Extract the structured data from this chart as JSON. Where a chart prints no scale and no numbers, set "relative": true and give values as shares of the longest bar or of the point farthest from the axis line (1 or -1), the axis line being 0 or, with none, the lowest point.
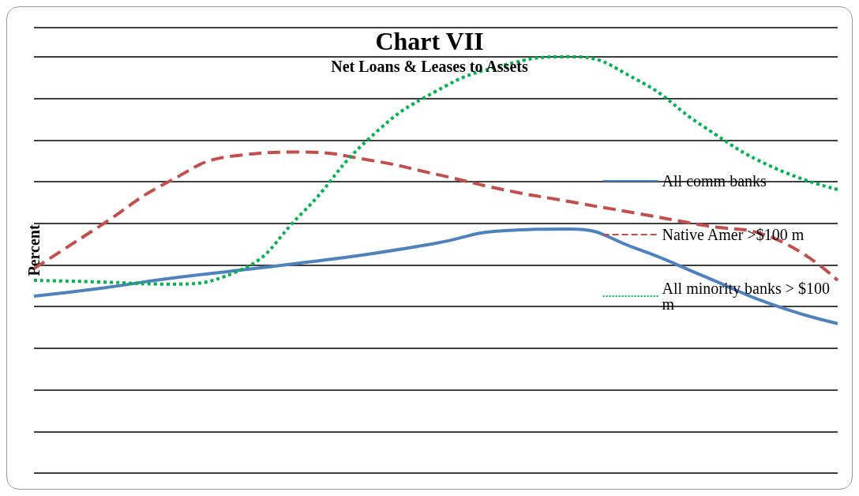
{
  "chart_data": {
    "type": "line",
    "title": "Chart VII",
    "subtitle": "Net Loans & Leases to Assets",
    "ylabel": "Percent",
    "relative": true,
    "grid": "y",
    "legend": "right",
    "marker": "none",
    "categories": [
      null,
      null,
      null,
      null,
      null,
      null,
      null,
      null,
      null,
      null,
      null,
      null,
      null
    ],
    "series": [
      {
        "name": "All comm banks",
        "color": "#4f81bd",
        "line_style": "solid",
        "values": [
          0.425,
          0.444,
          0.467,
          0.486,
          0.505,
          0.526,
          0.552,
          0.582,
          0.586,
          0.539,
          0.473,
          0.406,
          0.359
        ]
      },
      {
        "name": "Native Amer >$100 m",
        "color": "#c0504d",
        "line_style": "dashed",
        "values": [
          0.491,
          0.595,
          0.699,
          0.762,
          0.771,
          0.752,
          0.718,
          0.681,
          0.652,
          0.624,
          0.595,
          0.567,
          0.463
        ]
      },
      {
        "name": "All minority banks > $100 m",
        "color": "#00b050",
        "line_style": "dotted",
        "values": [
          0.463,
          0.459,
          0.454,
          0.482,
          0.624,
          0.803,
          0.917,
          0.979,
          1,
          0.945,
          0.832,
          0.737,
          0.681
        ]
      }
    ]
  }
}
